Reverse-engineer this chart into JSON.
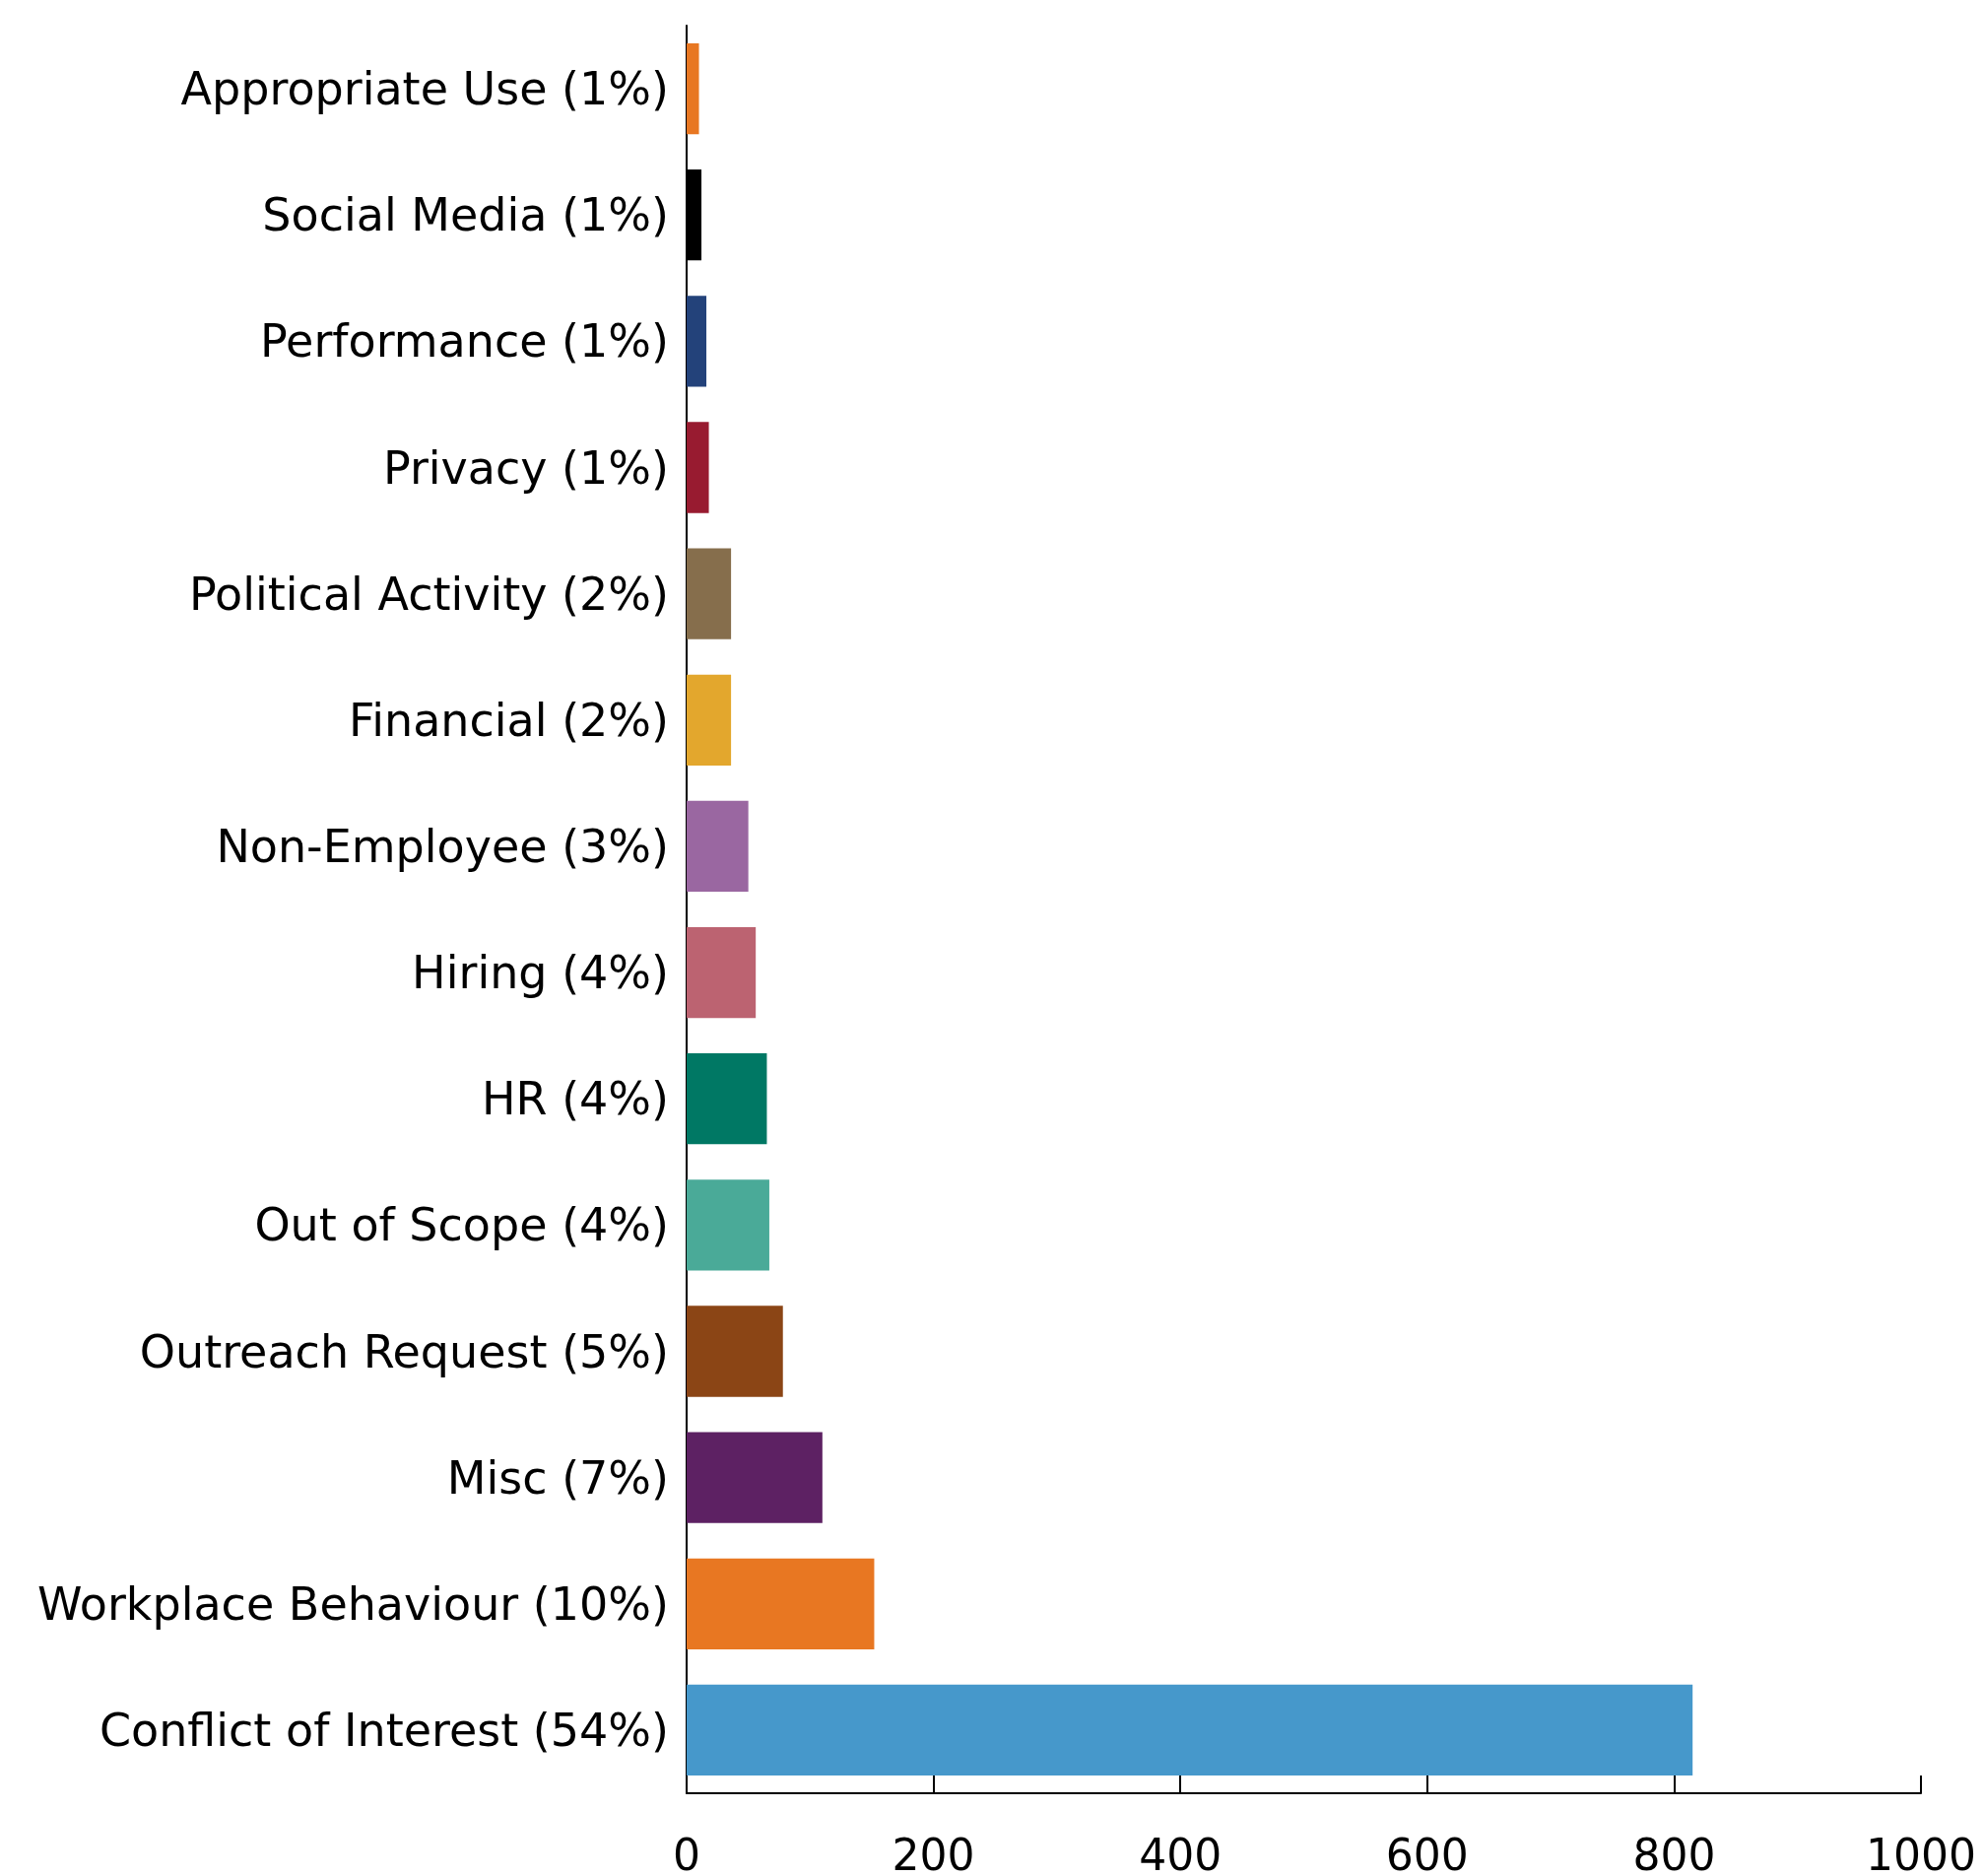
{
  "chart_data": {
    "type": "bar",
    "orientation": "horizontal",
    "categories": [
      "Appropriate Use (1%)",
      "Social Media (1%)",
      "Performance (1%)",
      "Privacy (1%)",
      "Political Activity (2%)",
      "Financial (2%)",
      "Non-Employee (3%)",
      "Hiring (4%)",
      "HR (4%)",
      "Out of Scope (4%)",
      "Outreach Request (5%)",
      "Misc (7%)",
      "Workplace Behaviour (10%)",
      "Conflict of Interest (54%)"
    ],
    "values": [
      10,
      12,
      16,
      18,
      36,
      36,
      50,
      56,
      65,
      67,
      78,
      110,
      152,
      815
    ],
    "colors": [
      "#e87722",
      "#000000",
      "#23427a",
      "#981b30",
      "#866e4c",
      "#e3a72d",
      "#9a67a1",
      "#bc6371",
      "#007864",
      "#4aaa98",
      "#8b4515",
      "#5d2163",
      "#e87722",
      "#4698cb"
    ],
    "xlim": [
      0,
      1000
    ],
    "xticks": [
      0,
      200,
      400,
      600,
      800,
      1000
    ],
    "grid": false
  }
}
